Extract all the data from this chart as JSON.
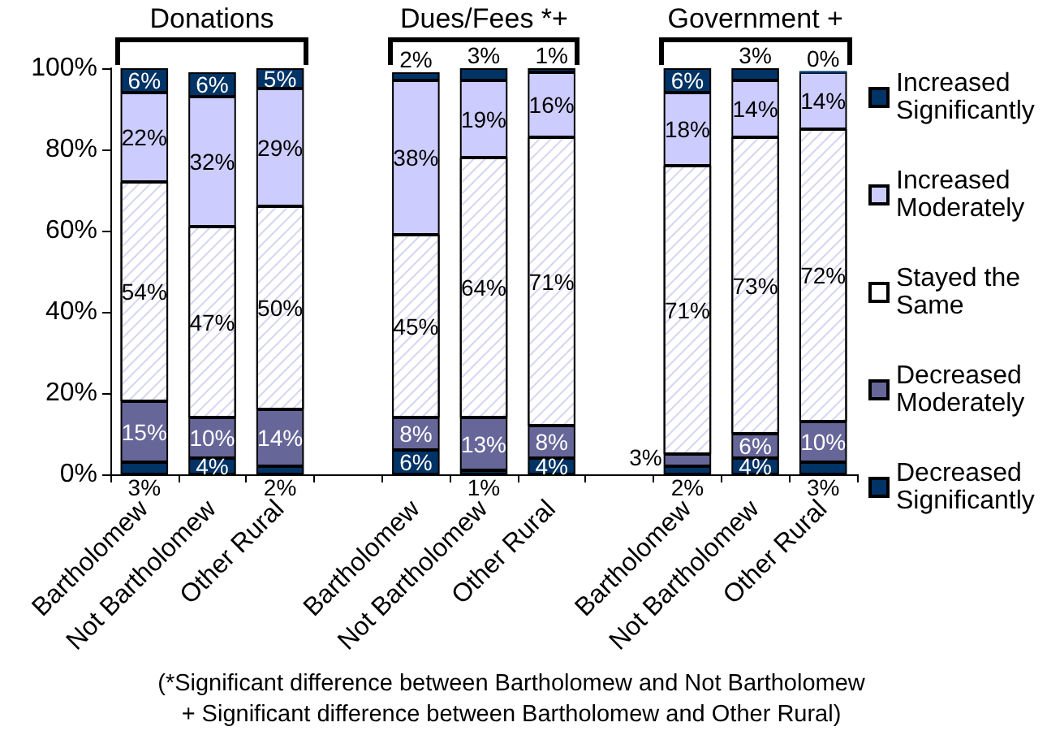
{
  "chart_data": {
    "type": "bar",
    "stacked": true,
    "categories": [
      "Bartholomew",
      "Not Bartholomew",
      "Other Rural",
      null,
      "Bartholomew",
      "Not Bartholomew",
      "Other Rural",
      null,
      "Bartholomew",
      "Not Bartholomew",
      "Other Rural"
    ],
    "ylim": [
      0,
      100
    ],
    "yticks": [
      {
        "value": 0,
        "label": "0%"
      },
      {
        "value": 20,
        "label": "20%"
      },
      {
        "value": 40,
        "label": "40%"
      },
      {
        "value": 60,
        "label": "60%"
      },
      {
        "value": 80,
        "label": "80%"
      },
      {
        "value": 100,
        "label": "100%"
      }
    ],
    "legend": "right",
    "annotations": [
      "Donations",
      "Dues/Fees *+",
      "Government +",
      "(*Significant difference between Bartholomew and Not Bartholomew",
      "+ Significant difference between Bartholomew and Other Rural)"
    ],
    "series": [
      {
        "name": "Decreased Significantly",
        "color": "#003366",
        "values": [
          3,
          4,
          2,
          null,
          6,
          1,
          4,
          null,
          2,
          4,
          3
        ],
        "value_labels": [
          "3%",
          "4%",
          "2%",
          null,
          "6%",
          "1%",
          "4%",
          null,
          "2%",
          "4%",
          "3%"
        ]
      },
      {
        "name": "Decreased Moderately",
        "color": "#666699",
        "values": [
          15,
          10,
          14,
          null,
          8,
          13,
          8,
          null,
          3,
          6,
          10
        ],
        "value_labels": [
          "15%",
          "10%",
          "14%",
          null,
          "8%",
          "13%",
          "8%",
          null,
          "3%",
          "6%",
          "10%"
        ]
      },
      {
        "name": "Stayed the Same",
        "color": "#ffffff",
        "values": [
          54,
          47,
          50,
          null,
          45,
          64,
          71,
          null,
          71,
          73,
          72
        ],
        "value_labels": [
          "54%",
          "47%",
          "50%",
          null,
          "45%",
          "64%",
          "71%",
          null,
          "71%",
          "73%",
          "72%"
        ]
      },
      {
        "name": "Increased Moderately",
        "color": "#ccccff",
        "values": [
          22,
          32,
          29,
          null,
          38,
          19,
          16,
          null,
          18,
          14,
          14
        ],
        "value_labels": [
          "22%",
          "32%",
          "29%",
          null,
          "38%",
          "19%",
          "16%",
          null,
          "18%",
          "14%",
          "14%"
        ]
      },
      {
        "name": "Increased Significantly",
        "color": "#003366",
        "values": [
          6,
          6,
          5,
          null,
          2,
          3,
          1,
          null,
          6,
          3,
          0
        ],
        "value_labels": [
          "6%",
          "6%",
          "5%",
          null,
          "2%",
          "3%",
          "1%",
          null,
          "6%",
          "3%",
          "0%"
        ]
      }
    ]
  }
}
